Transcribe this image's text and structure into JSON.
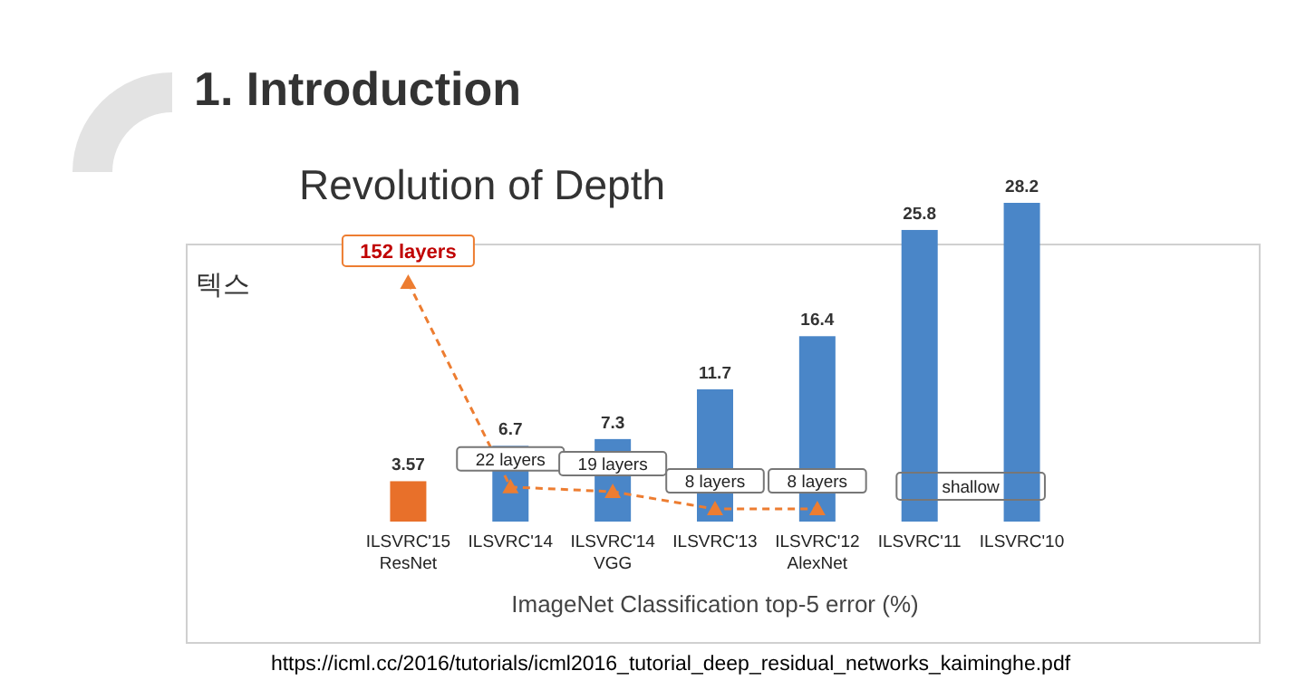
{
  "chart_data": {
    "type": "bar",
    "title": "Revolution of Depth",
    "xlabel": "ImageNet Classification top-5 error (%)",
    "categories": [
      "ILSVRC'15\nResNet",
      "ILSVRC'14",
      "ILSVRC'14\nVGG",
      "ILSVRC'13",
      "ILSVRC'12\nAlexNet",
      "ILSVRC'11",
      "ILSVRC'10"
    ],
    "series": [
      {
        "colors": [
          "#e8702a",
          "#4a86c8",
          "#4a86c8",
          "#4a86c8",
          "#4a86c8",
          "#4a86c8",
          "#4a86c8"
        ],
        "values": [
          3.57,
          6.7,
          7.3,
          11.7,
          16.4,
          25.8,
          28.2
        ]
      },
      {
        "type": "line",
        "axis": "y2",
        "color": "#ed7d31",
        "values": [
          152,
          22,
          19,
          8,
          8,
          null,
          null
        ],
        "value_labels": [
          "152 layers",
          "22 layers",
          "19 layers",
          "8 layers",
          "8 layers",
          null,
          null
        ],
        "marker": "triangle",
        "line_style": "dashed"
      }
    ],
    "data_labels": true,
    "annotations": [
      "1. Introduction",
      "텍스",
      "https://icml.cc/2016/tutorials/icml2016_tutorial_deep_residual_networks_kaiminghe.pdf",
      "shallow"
    ]
  }
}
